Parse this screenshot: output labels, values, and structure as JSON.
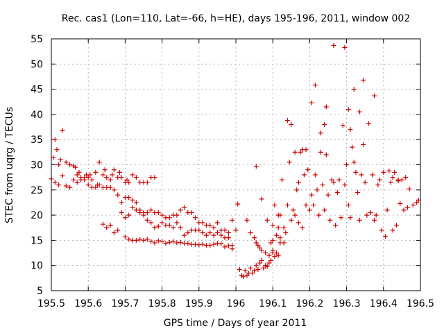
{
  "chart_data": {
    "type": "scatter",
    "title": "Rec. cas1 (Lon=110, Lat=-66, h=HE), days 195-196, 2011, window 002",
    "xlabel": "GPS time / Days of year 2011",
    "ylabel": "STEC from uqrg / TECUs",
    "xlim": [
      195.5,
      196.5
    ],
    "ylim": [
      5,
      55
    ],
    "xticks": [
      195.5,
      195.6,
      195.7,
      195.8,
      195.9,
      196,
      196.1,
      196.2,
      196.3,
      196.4,
      196.5
    ],
    "xtick_labels": [
      "195.5",
      "195.6",
      "195.7",
      "195.8",
      "195.9",
      "196",
      "196.1",
      "196.2",
      "196.3",
      "196.4",
      "196.5"
    ],
    "yticks": [
      5,
      10,
      15,
      20,
      25,
      30,
      35,
      40,
      45,
      50,
      55
    ],
    "ytick_labels": [
      "5",
      "10",
      "15",
      "20",
      "25",
      "30",
      "35",
      "40",
      "45",
      "50",
      "55"
    ],
    "grid": true,
    "marker": "plus",
    "color": "#cc0000",
    "series": [
      {
        "name": "upper",
        "points": [
          [
            195.505,
            31.4
          ],
          [
            195.51,
            35.0
          ],
          [
            195.515,
            33.0
          ],
          [
            195.52,
            30.0
          ],
          [
            195.525,
            31.0
          ],
          [
            195.53,
            36.8
          ],
          [
            195.54,
            30.5
          ],
          [
            195.55,
            30.0
          ],
          [
            195.56,
            29.8
          ],
          [
            195.565,
            29.5
          ],
          [
            195.57,
            28.0
          ],
          [
            195.575,
            28.5
          ],
          [
            195.58,
            27.5
          ],
          [
            195.59,
            27.0
          ],
          [
            195.595,
            28.0
          ],
          [
            195.6,
            27.5
          ],
          [
            195.605,
            28.0
          ],
          [
            195.61,
            27.0
          ],
          [
            195.62,
            28.5
          ],
          [
            195.625,
            26.0
          ],
          [
            195.63,
            30.5
          ],
          [
            195.64,
            28.0
          ],
          [
            195.645,
            29.0
          ],
          [
            195.65,
            27.5
          ],
          [
            195.66,
            27.0
          ],
          [
            195.665,
            28.0
          ],
          [
            195.67,
            29.0
          ],
          [
            195.68,
            27.5
          ],
          [
            195.685,
            28.5
          ],
          [
            195.69,
            27.5
          ],
          [
            195.7,
            26.5
          ],
          [
            195.705,
            27.0
          ],
          [
            195.71,
            26.5
          ],
          [
            195.72,
            28.0
          ],
          [
            195.73,
            27.5
          ],
          [
            195.74,
            26.5
          ],
          [
            195.75,
            26.5
          ],
          [
            195.76,
            26.5
          ],
          [
            195.77,
            27.5
          ],
          [
            195.78,
            27.5
          ]
        ]
      },
      {
        "name": "upper-middle",
        "points": [
          [
            195.5,
            27.2
          ],
          [
            195.51,
            26.5
          ],
          [
            195.52,
            26.0
          ],
          [
            195.53,
            27.8
          ],
          [
            195.54,
            25.8
          ],
          [
            195.55,
            25.5
          ],
          [
            195.56,
            27.0
          ],
          [
            195.57,
            26.5
          ],
          [
            195.58,
            27.0
          ],
          [
            195.59,
            27.5
          ],
          [
            195.6,
            26.0
          ],
          [
            195.61,
            25.5
          ],
          [
            195.62,
            25.5
          ],
          [
            195.63,
            26.0
          ],
          [
            195.64,
            25.5
          ],
          [
            195.65,
            25.5
          ],
          [
            195.66,
            25.5
          ],
          [
            195.67,
            25.0
          ],
          [
            195.68,
            24.0
          ],
          [
            195.69,
            22.5
          ],
          [
            195.7,
            23.5
          ],
          [
            195.71,
            23.5
          ],
          [
            195.72,
            23.0
          ],
          [
            195.73,
            22.5
          ],
          [
            195.74,
            21.0
          ],
          [
            195.75,
            20.5
          ],
          [
            195.76,
            20.5
          ],
          [
            195.77,
            21.0
          ],
          [
            195.78,
            20.5
          ],
          [
            195.79,
            20.5
          ],
          [
            195.8,
            20.0
          ],
          [
            195.81,
            19.5
          ],
          [
            195.82,
            19.5
          ],
          [
            195.83,
            20.0
          ],
          [
            195.84,
            20.0
          ],
          [
            195.85,
            21.0
          ],
          [
            195.86,
            21.5
          ],
          [
            195.87,
            20.5
          ],
          [
            195.88,
            20.5
          ],
          [
            195.89,
            19.5
          ],
          [
            195.9,
            18.5
          ],
          [
            195.91,
            18.5
          ],
          [
            195.92,
            18.0
          ],
          [
            195.93,
            18.0
          ],
          [
            195.94,
            17.5
          ],
          [
            195.95,
            18.5
          ],
          [
            195.96,
            17.0
          ],
          [
            195.97,
            17.0
          ],
          [
            195.98,
            16.5
          ],
          [
            195.99,
            19.0
          ],
          [
            196.0,
            17.0
          ]
        ]
      },
      {
        "name": "middle",
        "points": [
          [
            195.64,
            18.2
          ],
          [
            195.65,
            17.5
          ],
          [
            195.66,
            18.0
          ],
          [
            195.67,
            16.5
          ],
          [
            195.68,
            17.0
          ],
          [
            195.69,
            20.5
          ],
          [
            195.7,
            19.5
          ],
          [
            195.71,
            20.0
          ],
          [
            195.72,
            21.5
          ],
          [
            195.73,
            21.0
          ],
          [
            195.74,
            20.5
          ],
          [
            195.75,
            20.0
          ],
          [
            195.76,
            19.0
          ],
          [
            195.77,
            18.5
          ],
          [
            195.78,
            17.5
          ],
          [
            195.79,
            17.8
          ],
          [
            195.8,
            18.5
          ],
          [
            195.81,
            18.0
          ],
          [
            195.82,
            18.0
          ],
          [
            195.83,
            17.5
          ],
          [
            195.84,
            18.5
          ],
          [
            195.85,
            17.5
          ],
          [
            195.86,
            16.0
          ],
          [
            195.87,
            16.5
          ],
          [
            195.88,
            17.0
          ],
          [
            195.89,
            17.0
          ],
          [
            195.9,
            17.0
          ],
          [
            195.91,
            16.5
          ],
          [
            195.92,
            16.0
          ],
          [
            195.93,
            16.5
          ],
          [
            195.94,
            16.0
          ],
          [
            195.95,
            16.5
          ],
          [
            195.96,
            16.0
          ],
          [
            195.97,
            15.5
          ],
          [
            195.98,
            15.5
          ],
          [
            195.99,
            14.0
          ]
        ]
      },
      {
        "name": "lower",
        "points": [
          [
            195.7,
            15.7
          ],
          [
            195.71,
            15.2
          ],
          [
            195.72,
            15.0
          ],
          [
            195.73,
            15.0
          ],
          [
            195.74,
            15.2
          ],
          [
            195.75,
            15.0
          ],
          [
            195.76,
            15.2
          ],
          [
            195.77,
            14.8
          ],
          [
            195.78,
            14.5
          ],
          [
            195.79,
            14.9
          ],
          [
            195.8,
            14.8
          ],
          [
            195.81,
            14.4
          ],
          [
            195.82,
            14.6
          ],
          [
            195.83,
            14.8
          ],
          [
            195.84,
            14.5
          ],
          [
            195.85,
            14.6
          ],
          [
            195.86,
            14.4
          ],
          [
            195.87,
            14.4
          ],
          [
            195.88,
            14.2
          ],
          [
            195.89,
            14.2
          ],
          [
            195.9,
            14.1
          ],
          [
            195.91,
            14.2
          ],
          [
            195.92,
            14.0
          ],
          [
            195.93,
            14.0
          ],
          [
            195.94,
            14.2
          ],
          [
            195.95,
            14.4
          ],
          [
            195.96,
            14.3
          ],
          [
            195.97,
            13.7
          ],
          [
            195.98,
            13.9
          ],
          [
            195.99,
            13.3
          ]
        ]
      },
      {
        "name": "trough",
        "points": [
          [
            196.005,
            22.2
          ],
          [
            196.01,
            9.2
          ],
          [
            196.015,
            8.0
          ],
          [
            196.02,
            7.8
          ],
          [
            196.025,
            9.0
          ],
          [
            196.03,
            8.0
          ],
          [
            196.035,
            8.5
          ],
          [
            196.04,
            9.5
          ],
          [
            196.045,
            8.5
          ],
          [
            196.05,
            9.0
          ],
          [
            196.055,
            10.0
          ],
          [
            196.06,
            9.2
          ],
          [
            196.065,
            10.5
          ],
          [
            196.07,
            11.0
          ],
          [
            196.075,
            9.5
          ],
          [
            196.08,
            10.0
          ],
          [
            196.085,
            9.8
          ],
          [
            196.09,
            10.5
          ],
          [
            196.095,
            11.0
          ],
          [
            196.1,
            12.5
          ],
          [
            196.105,
            11.8
          ],
          [
            196.11,
            12.5
          ],
          [
            196.115,
            12.0
          ],
          [
            196.12,
            14.5
          ],
          [
            196.03,
            19.0
          ],
          [
            196.04,
            16.5
          ],
          [
            196.05,
            15.5
          ],
          [
            196.055,
            14.5
          ],
          [
            196.06,
            14.0
          ],
          [
            196.065,
            13.5
          ],
          [
            196.07,
            13.0
          ],
          [
            196.08,
            12.5
          ],
          [
            196.09,
            12.0
          ],
          [
            196.1,
            15.0
          ],
          [
            196.11,
            16.0
          ],
          [
            196.115,
            17.5
          ],
          [
            196.055,
            29.7
          ],
          [
            196.07,
            23.2
          ],
          [
            196.085,
            19.0
          ],
          [
            196.1,
            18.0
          ],
          [
            196.105,
            22.0
          ],
          [
            196.115,
            20.0
          ],
          [
            196.095,
            14.5
          ],
          [
            196.1,
            13.0
          ],
          [
            196.12,
            15.5
          ],
          [
            196.13,
            14.5
          ]
        ]
      },
      {
        "name": "rising",
        "points": [
          [
            196.12,
            20.0
          ],
          [
            196.125,
            27.0
          ],
          [
            196.13,
            17.5
          ],
          [
            196.135,
            16.5
          ],
          [
            196.14,
            38.8
          ],
          [
            196.14,
            22.0
          ],
          [
            196.145,
            30.5
          ],
          [
            196.15,
            38.0
          ],
          [
            196.15,
            19.0
          ],
          [
            196.155,
            21.0
          ],
          [
            196.16,
            32.5
          ],
          [
            196.16,
            20.0
          ],
          [
            196.165,
            25.0
          ],
          [
            196.17,
            26.5
          ],
          [
            196.17,
            18.5
          ],
          [
            196.175,
            32.5
          ],
          [
            196.18,
            33.0
          ],
          [
            196.18,
            17.5
          ],
          [
            196.185,
            28.0
          ],
          [
            196.19,
            33.0
          ],
          [
            196.19,
            22.0
          ],
          [
            196.195,
            29.0
          ],
          [
            196.2,
            21.0
          ],
          [
            196.205,
            42.3
          ],
          [
            196.205,
            24.0
          ],
          [
            196.21,
            22.0
          ],
          [
            196.215,
            45.8
          ],
          [
            196.215,
            28.0
          ],
          [
            196.22,
            25.0
          ],
          [
            196.225,
            20.0
          ],
          [
            196.23,
            36.3
          ],
          [
            196.23,
            32.5
          ],
          [
            196.235,
            26.0
          ],
          [
            196.24,
            38.0
          ],
          [
            196.24,
            21.0
          ],
          [
            196.245,
            41.5
          ],
          [
            196.245,
            32.0
          ],
          [
            196.25,
            24.0
          ],
          [
            196.255,
            19.0
          ],
          [
            196.26,
            27.0
          ],
          [
            196.265,
            53.7
          ],
          [
            196.265,
            26.5
          ],
          [
            196.27,
            18.0
          ],
          [
            196.275,
            24.5
          ],
          [
            196.28,
            27.0
          ],
          [
            196.285,
            19.5
          ],
          [
            196.29,
            37.8
          ],
          [
            196.295,
            53.3
          ],
          [
            196.295,
            26.0
          ],
          [
            196.3,
            30.0
          ],
          [
            196.305,
            41.0
          ],
          [
            196.305,
            22.0
          ],
          [
            196.31,
            37.0
          ],
          [
            196.31,
            19.5
          ],
          [
            196.315,
            33.5
          ],
          [
            196.32,
            45.0
          ],
          [
            196.32,
            30.5
          ],
          [
            196.325,
            28.5
          ],
          [
            196.33,
            24.5
          ],
          [
            196.335,
            40.5
          ],
          [
            196.335,
            19.0
          ],
          [
            196.34,
            28.0
          ],
          [
            196.345,
            46.8
          ],
          [
            196.345,
            34.0
          ],
          [
            196.35,
            26.5
          ],
          [
            196.355,
            20.0
          ],
          [
            196.36,
            38.2
          ],
          [
            196.365,
            20.5
          ],
          [
            196.37,
            28.0
          ],
          [
            196.375,
            43.7
          ],
          [
            196.375,
            19.0
          ],
          [
            196.38,
            20.0
          ],
          [
            196.385,
            26.0
          ],
          [
            196.39,
            27.0
          ],
          [
            196.395,
            17.0
          ],
          [
            196.4,
            28.5
          ],
          [
            196.405,
            15.8
          ],
          [
            196.41,
            21.0
          ],
          [
            196.415,
            28.8
          ],
          [
            196.42,
            26.5
          ],
          [
            196.425,
            17.0
          ],
          [
            196.43,
            28.5
          ],
          [
            196.435,
            18.0
          ],
          [
            196.44,
            26.8
          ],
          [
            196.445,
            22.3
          ],
          [
            196.45,
            27.0
          ],
          [
            196.455,
            21.0
          ],
          [
            196.46,
            27.5
          ],
          [
            196.465,
            21.5
          ],
          [
            196.47,
            25.2
          ],
          [
            196.48,
            22.0
          ],
          [
            196.49,
            22.5
          ],
          [
            196.495,
            23.0
          ],
          [
            196.425,
            27.5
          ],
          [
            196.44,
            27.0
          ]
        ]
      }
    ]
  }
}
